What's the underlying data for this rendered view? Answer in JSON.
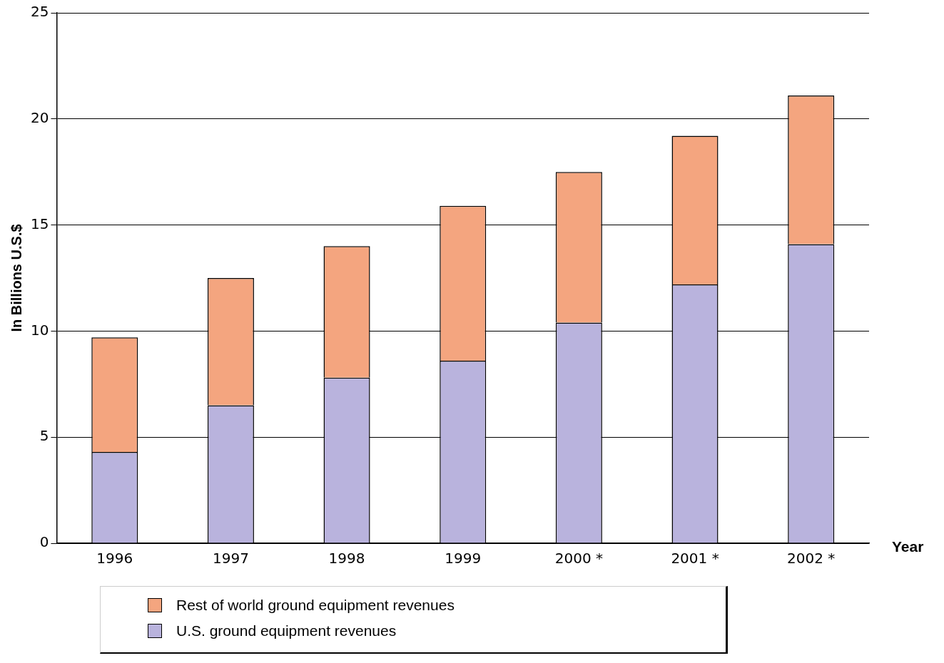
{
  "chart_data": {
    "type": "bar",
    "stacked": true,
    "xlabel": "Year",
    "ylabel": "In Billions U.S.$",
    "categories": [
      "1996",
      "1997",
      "1998",
      "1999",
      "2000 *",
      "2001 *",
      "2002 *"
    ],
    "series": [
      {
        "name": "U.S. ground equipment revenues",
        "color": "#b9b3dd",
        "values": [
          4.3,
          6.5,
          7.8,
          8.6,
          10.4,
          12.2,
          14.1
        ]
      },
      {
        "name": "Rest of world ground equipment revenues",
        "color": "#f4a57f",
        "values": [
          5.4,
          6.0,
          6.2,
          7.3,
          7.1,
          7.0,
          7.0
        ]
      }
    ],
    "ylim": [
      0,
      25
    ],
    "yticks": [
      0,
      5,
      10,
      15,
      20,
      25
    ],
    "grid": "y",
    "legend": "bottom"
  }
}
